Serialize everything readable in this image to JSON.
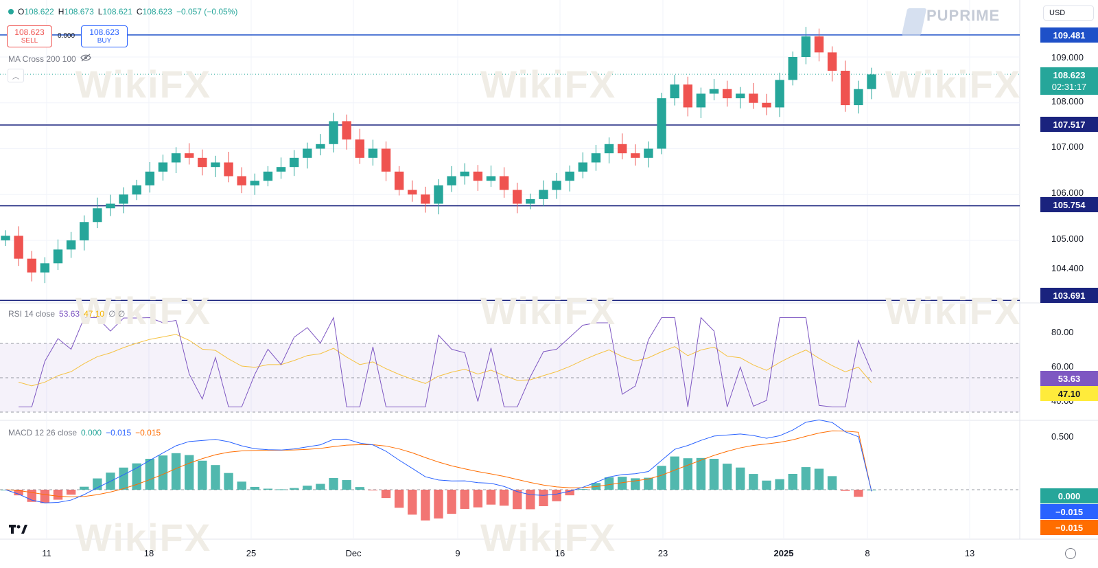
{
  "ohlc": {
    "o_label": "O",
    "o": "108.622",
    "h_label": "H",
    "h": "108.673",
    "l_label": "L",
    "l": "108.621",
    "c_label": "C",
    "c": "108.623",
    "change": "−0.057 (−0.05%)"
  },
  "trade": {
    "sell_price": "108.623",
    "sell_label": "SELL",
    "buy_price": "108.623",
    "buy_label": "BUY",
    "spread": "0.000"
  },
  "indicator_ma": {
    "label": "MA Cross 200 100"
  },
  "rsi": {
    "label": "RSI 14 close",
    "value": "53.63",
    "ma_value": "47.10",
    "extra": "∅ ∅",
    "ticks": [
      "80.00",
      "60.00",
      "40.00"
    ],
    "tag_value": "53.63",
    "tag_ma": "47.10"
  },
  "macd": {
    "label": "MACD 12 26 close",
    "hist": "0.000",
    "macd": "−0.015",
    "signal": "−0.015",
    "top_tick": "0.500",
    "tag_hist": "0.000",
    "tag_macd": "−0.015",
    "tag_signal": "−0.015"
  },
  "currency": "USD",
  "brand": "PUPRIME",
  "watermark": "WikiFX",
  "price_axis": {
    "ticks": [
      "109.000",
      "108.000",
      "107.000",
      "106.000",
      "105.000",
      "104.400"
    ]
  },
  "levels": [
    {
      "label": "109.481",
      "color": "#1e50c8"
    },
    {
      "label": "107.517",
      "color": "#1a237e"
    },
    {
      "label": "105.754",
      "color": "#1a237e"
    },
    {
      "label": "103.691",
      "color": "#1a237e"
    }
  ],
  "current_price": {
    "price": "108.623",
    "countdown": "02:31:17",
    "color": "#26a69a"
  },
  "time_axis": [
    "11",
    "18",
    "25",
    "Dec",
    "9",
    "16",
    "23",
    "2025",
    "8",
    "13"
  ],
  "chart_data": {
    "type": "candlestick",
    "symbol_quote": "USD",
    "price_range": [
      103.6,
      109.9
    ],
    "horizontal_levels": [
      109.481,
      107.517,
      105.754,
      103.691
    ],
    "closes": [
      105.1,
      104.6,
      104.3,
      104.5,
      104.8,
      105.0,
      105.4,
      105.7,
      105.8,
      106.0,
      106.2,
      106.5,
      106.7,
      106.9,
      106.8,
      106.6,
      106.7,
      106.4,
      106.2,
      106.3,
      106.5,
      106.6,
      106.8,
      107.0,
      107.1,
      107.6,
      107.2,
      106.8,
      107.0,
      106.5,
      106.1,
      106.0,
      105.8,
      106.2,
      106.4,
      106.5,
      106.3,
      106.4,
      106.1,
      105.8,
      105.9,
      106.1,
      106.3,
      106.5,
      106.7,
      106.9,
      107.1,
      106.9,
      106.8,
      107.0,
      108.1,
      108.4,
      107.9,
      108.2,
      108.3,
      108.1,
      108.2,
      108.0,
      107.9,
      108.5,
      109.0,
      109.45,
      109.1,
      108.7,
      107.95,
      108.3,
      108.62
    ],
    "rsi": {
      "range": [
        30,
        90
      ],
      "bands": [
        70,
        50,
        30
      ],
      "last": 53.63,
      "ma_last": 47.1
    },
    "macd": {
      "zero_line": 0,
      "last_hist": 0.0,
      "last_macd": -0.015,
      "last_signal": -0.015
    }
  }
}
